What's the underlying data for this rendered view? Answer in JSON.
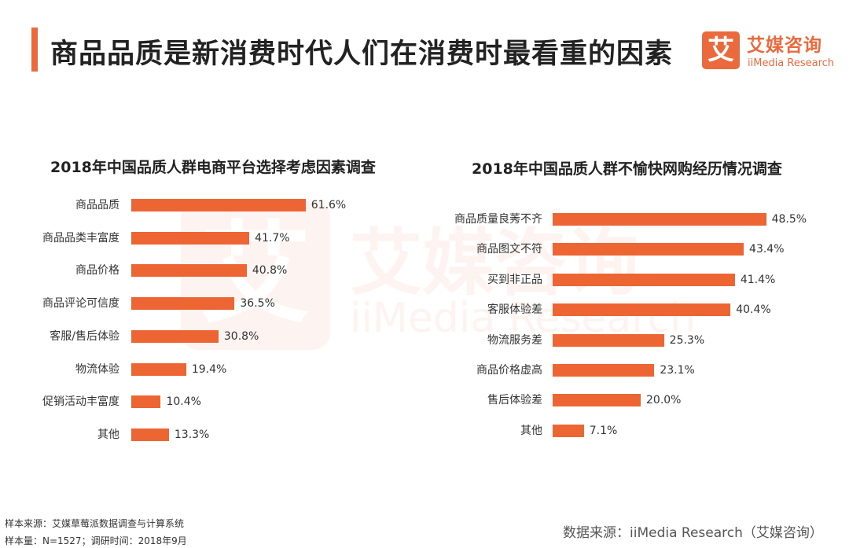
{
  "header": {
    "title": "商品品质是新消费时代人们在消费时最看重的因素"
  },
  "logo": {
    "mark": "艾",
    "cn_name": "艾媒咨询",
    "en_name": "iiMedia Research"
  },
  "watermark": {
    "mark": "艾",
    "cn_name": "艾媒咨询",
    "en_name": "iiMedia Research"
  },
  "chart_data": [
    {
      "type": "bar",
      "orientation": "horizontal",
      "title": "2018年中国品质人群电商平台选择考虑因素调查",
      "categories": [
        "商品品质",
        "商品品类丰富度",
        "商品价格",
        "商品评论可信度",
        "客服/售后体验",
        "物流体验",
        "促销活动丰富度",
        "其他"
      ],
      "values": [
        61.6,
        41.7,
        40.8,
        36.5,
        30.8,
        19.4,
        10.4,
        13.3
      ],
      "value_labels": [
        "61.6%",
        "41.7%",
        "40.8%",
        "36.5%",
        "30.8%",
        "19.4%",
        "10.4%",
        "13.3%"
      ],
      "unit": "%",
      "bar_color": "#ee6534"
    },
    {
      "type": "bar",
      "orientation": "horizontal",
      "title": "2018年中国品质人群不愉快网购经历情况调查",
      "categories": [
        "商品质量良莠不齐",
        "商品图文不符",
        "买到非正品",
        "客服体验差",
        "物流服务差",
        "商品价格虚高",
        "售后体验差",
        "其他"
      ],
      "values": [
        48.5,
        43.4,
        41.4,
        40.4,
        25.3,
        23.1,
        20.0,
        7.1
      ],
      "value_labels": [
        "48.5%",
        "43.4%",
        "41.4%",
        "40.4%",
        "25.3%",
        "23.1%",
        "20.0%",
        "7.1%"
      ],
      "unit": "%",
      "bar_color": "#ee6534"
    }
  ],
  "footer": {
    "sample_source": "样本来源：艾媒草莓派数据调查与计算系统",
    "sample_size": "样本量：N=1527；调研时间：2018年9月",
    "data_source": "数据来源：iiMedia Research（艾媒咨询）"
  },
  "colors": {
    "accent": "#ea6a3d",
    "bar": "#ee6534"
  }
}
